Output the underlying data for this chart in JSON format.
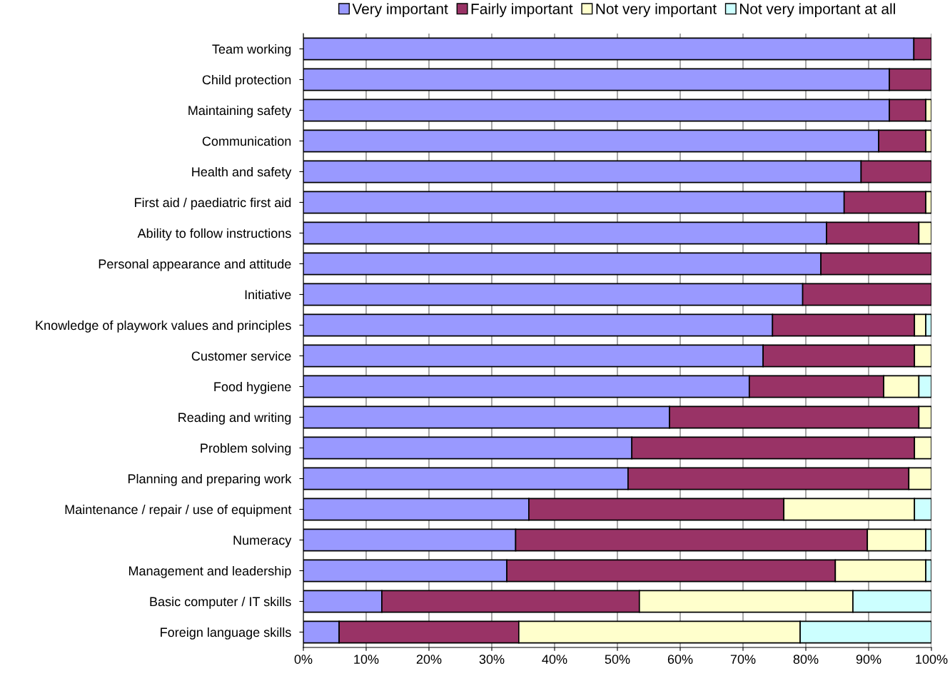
{
  "chart_data": {
    "type": "bar",
    "orientation": "horizontal",
    "stacked": true,
    "categories": [
      "Team working",
      "Child protection",
      "Maintaining safety",
      "Communication",
      "Health and safety",
      "First aid / paediatric first aid",
      "Ability to follow instructions",
      "Personal appearance and attitude",
      "Initiative",
      "Knowledge of playwork values and principles",
      "Customer service",
      "Food hygiene",
      "Reading and writing",
      "Problem solving",
      "Planning and preparing work",
      "Maintenance / repair / use of equipment",
      "Numeracy",
      "Management and leadership",
      "Basic computer / IT skills",
      "Foreign language skills"
    ],
    "series": [
      {
        "name": "Very important",
        "color": "#9999ff",
        "values": [
          97.2,
          93.3,
          93.3,
          91.6,
          88.8,
          86.1,
          83.3,
          82.4,
          79.5,
          74.7,
          73.2,
          71.0,
          58.3,
          52.3,
          51.7,
          35.9,
          33.8,
          32.4,
          12.5,
          5.7
        ]
      },
      {
        "name": "Fairly important",
        "color": "#993366",
        "values": [
          2.8,
          6.7,
          5.8,
          7.5,
          11.2,
          13.0,
          14.7,
          17.6,
          20.5,
          22.6,
          24.1,
          21.4,
          39.7,
          45.0,
          44.7,
          40.6,
          56.0,
          52.3,
          41.0,
          28.6
        ]
      },
      {
        "name": "Not very important",
        "color": "#ffffcc",
        "values": [
          0,
          0,
          0.9,
          0.9,
          0,
          0.9,
          2.0,
          0,
          0,
          1.8,
          2.7,
          5.6,
          2.0,
          2.7,
          3.6,
          20.8,
          9.3,
          14.4,
          34.0,
          44.8
        ]
      },
      {
        "name": "Not very important at all",
        "color": "#ccffff",
        "values": [
          0,
          0,
          0,
          0,
          0,
          0,
          0,
          0,
          0,
          0.9,
          0,
          2.0,
          0,
          0,
          0,
          2.7,
          0.9,
          0.9,
          12.5,
          20.9
        ]
      }
    ],
    "xlim": [
      0,
      100
    ],
    "xticks": [
      {
        "value": 0,
        "label": "0%"
      },
      {
        "value": 10,
        "label": "10%"
      },
      {
        "value": 20,
        "label": "20%"
      },
      {
        "value": 30,
        "label": "30%"
      },
      {
        "value": 40,
        "label": "40%"
      },
      {
        "value": 50,
        "label": "50%"
      },
      {
        "value": 60,
        "label": "60%"
      },
      {
        "value": 70,
        "label": "70%"
      },
      {
        "value": 80,
        "label": "80%"
      },
      {
        "value": 90,
        "label": "90%"
      },
      {
        "value": 100,
        "label": "100%"
      }
    ],
    "grid": "x",
    "legend": "top"
  }
}
